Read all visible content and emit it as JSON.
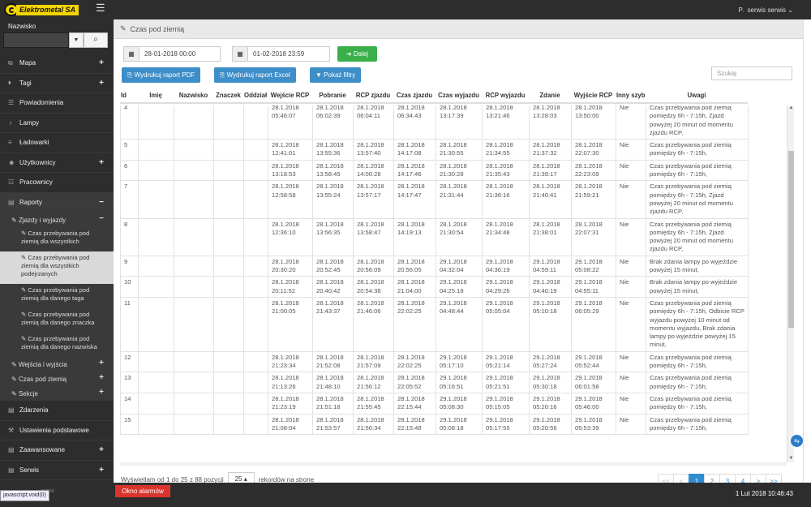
{
  "app": {
    "brand": "Elektrometal SA",
    "user_prefix": "P.",
    "user": "serwis serwis"
  },
  "sidebar": {
    "search_label": "Nazwisko",
    "menu": [
      {
        "label": "Mapa",
        "icon": "sitemap-icon",
        "plus": "+"
      },
      {
        "label": "Tagi",
        "icon": "tag-icon",
        "plus": "+"
      },
      {
        "label": "Powiadomienia",
        "icon": "users-icon",
        "plus": ""
      },
      {
        "label": "Lampy",
        "icon": "bulb-icon",
        "plus": ""
      },
      {
        "label": "Ładowarki",
        "icon": "list-icon",
        "plus": ""
      },
      {
        "label": "Użytkownicy",
        "icon": "user-icon",
        "plus": "+"
      },
      {
        "label": "Pracownicy",
        "icon": "group-icon",
        "plus": ""
      },
      {
        "label": "Raporty",
        "icon": "book-icon",
        "plus": "−"
      }
    ],
    "sub_group": {
      "label": "Zjazdy i wyjazdy",
      "sign": "−"
    },
    "sub_items": [
      "Czas przebywania pod ziemią dla wszystkich",
      "Czas przebywania pod ziemią dla wszystkich podejrzanych",
      "Czas przebywania pod ziemią dla danego taga",
      "Czas przebywania pod ziemią dla danego znaczka",
      "Czas przebywania pod ziemią dla danego nazwiska"
    ],
    "sub_groups_after": [
      {
        "label": "Wejścia i wyjścia",
        "sign": "+"
      },
      {
        "label": "Czas pod ziemią",
        "sign": "+"
      },
      {
        "label": "Sekcje",
        "sign": "+"
      }
    ],
    "menu_after": [
      {
        "label": "Zdarzenia",
        "plus": ""
      },
      {
        "label": "Ustawienia podstawowe",
        "plus": ""
      },
      {
        "label": "Zaawansowane",
        "plus": "+"
      },
      {
        "label": "Serwis",
        "plus": "+"
      }
    ]
  },
  "page": {
    "title": "Czas pod ziemią",
    "date_from": "28-01-2018 00:00",
    "date_to": "01-02-2018 23:59",
    "next_label": "Dalej",
    "btn_pdf": "Wydrukuj raport PDF",
    "btn_excel": "Wydrukuj raport Excel",
    "btn_filters": "Pokaż filtry",
    "search_placeholder": "Szukaj"
  },
  "table": {
    "columns": [
      "Id",
      "Imię",
      "Nazwisko",
      "Znaczek",
      "Oddział",
      "Wejście RCP",
      "Pobranie",
      "RCP zjazdu",
      "Czas zjazdu",
      "Czas wyjazdu",
      "RCP wyjazdu",
      "Zdanie",
      "Wyjście RCP",
      "Inny szyb",
      "Uwagi"
    ],
    "rows": [
      {
        "id": "4",
        "d": [
          "28.1.2018 05:46:07",
          "28.1.2018 06:02:39",
          "28.1.2018 06:04:11",
          "28.1.2018 06:34:43",
          "28.1.2018 13:17:39",
          "28.1.2018 13:21:46",
          "28.1.2018 13:28:03",
          "28.1.2018 13:50:00"
        ],
        "inny": "Nie",
        "uwagi": "Czas przebywania pod ziemią pomiędzy 6h - 7:15h, Zjazd powyżej 20 minut od momentu zjazdu RCP,"
      },
      {
        "id": "5",
        "d": [
          "28.1.2018 12:41:01",
          "28.1.2018 13:55:36",
          "28.1.2018 13:57:40",
          "28.1.2018 14:17:08",
          "28.1.2018 21:30:55",
          "28.1.2018 21:34:55",
          "28.1.2018 21:37:32",
          "28.1.2018 22:07:30"
        ],
        "inny": "Nie",
        "uwagi": "Czas przebywania pod ziemią pomiędzy 6h - 7:15h,"
      },
      {
        "id": "6",
        "d": [
          "28.1.2018 13:18:53",
          "28.1.2018 13:58:45",
          "28.1.2018 14:00:28",
          "28.1.2018 14:17:46",
          "28.1.2018 21:30:28",
          "28.1.2018 21:35:43",
          "28.1.2018 21:39:17",
          "28.1.2018 22:23:09"
        ],
        "inny": "Nie",
        "uwagi": "Czas przebywania pod ziemią pomiędzy 6h - 7:15h,"
      },
      {
        "id": "7",
        "d": [
          "28.1.2018 12:58:58",
          "28.1.2018 13:55:24",
          "28.1.2018 13:57:17",
          "28.1.2018 14:17:47",
          "28.1.2018 21:31:44",
          "28.1.2018 21:36:16",
          "28.1.2018 21:40:41",
          "28.1.2018 21:59:21"
        ],
        "inny": "Nie",
        "uwagi": "Czas przebywania pod ziemią pomiędzy 6h - 7:15h, Zjazd powyżej 20 minut od momentu zjazdu RCP,"
      },
      {
        "id": "8",
        "d": [
          "28.1.2018 12:36:10",
          "28.1.2018 13:56:35",
          "28.1.2018 13:58:47",
          "28.1.2018 14:19:13",
          "28.1.2018 21:30:54",
          "28.1.2018 21:34:48",
          "28.1.2018 21:38:01",
          "28.1.2018 22:07:31"
        ],
        "inny": "Nie",
        "uwagi": "Czas przebywania pod ziemią pomiędzy 6h - 7:15h, Zjazd powyżej 20 minut od momentu zjazdu RCP,"
      },
      {
        "id": "9",
        "d": [
          "28.1.2018 20:30:20",
          "28.1.2018 20:52:45",
          "28.1.2018 20:56:09",
          "28.1.2018 20:56:05",
          "29.1.2018 04:32:04",
          "29.1.2018 04:36:19",
          "29.1.2018 04:59:11",
          "29.1.2018 05:08:22"
        ],
        "inny": "Nie",
        "uwagi": "Brak zdania lampy po wyjeździe powyżej 15 minut,"
      },
      {
        "id": "10",
        "d": [
          "28.1.2018 20:11:52",
          "28.1.2018 20:40:42",
          "28.1.2018 20:54:38",
          "28.1.2018 21:04:00",
          "29.1.2018 04:25:18",
          "29.1.2018 04:29:26",
          "29.1.2018 04:40:19",
          "29.1.2018 04:55:11"
        ],
        "inny": "Nie",
        "uwagi": "Brak zdania lampy po wyjeździe powyżej 15 minut,"
      },
      {
        "id": "11",
        "d": [
          "28.1.2018 21:00:05",
          "28.1.2018 21:43:37",
          "28.1.2018 21:46:06",
          "28.1.2018 22:02:25",
          "29.1.2018 04:48:44",
          "29.1.2018 05:05:04",
          "29.1.2018 05:10:18",
          "29.1.2018 06:05:29"
        ],
        "inny": "Nie",
        "uwagi": "Czas przebywania pod ziemią pomiędzy 6h - 7:15h, Odbicie RCP wyjazdu powyżej 10 minut od momentu wyjazdu, Brak zdania lampy po wyjeździe powyżej 15 minut,"
      },
      {
        "id": "12",
        "d": [
          "28.1.2018 21:23:34",
          "28.1.2018 21:52:08",
          "28.1.2018 21:57:09",
          "28.1.2018 22:02:25",
          "29.1.2018 05:17:10",
          "29.1.2018 05:21:14",
          "29.1.2018 05:27:24",
          "29.1.2018 05:52:44"
        ],
        "inny": "Nie",
        "uwagi": "Czas przebywania pod ziemią pomiędzy 6h - 7:15h,"
      },
      {
        "id": "13",
        "d": [
          "28.1.2018 21:13:26",
          "28.1.2018 21:48:10",
          "28.1.2018 21:56:12",
          "28.1.2018 22:05:52",
          "29.1.2018 05:16:51",
          "29.1.2018 05:21:51",
          "29.1.2018 05:30:18",
          "29.1.2018 06:01:58"
        ],
        "inny": "Nie",
        "uwagi": "Czas przebywania pod ziemią pomiędzy 6h - 7:15h,"
      },
      {
        "id": "14",
        "d": [
          "28.1.2018 21:23:19",
          "28.1.2018 21:51:18",
          "28.1.2018 21:55:45",
          "28.1.2018 22:15:44",
          "29.1.2018 05:08:30",
          "29.1.2018 05:15:05",
          "29.1.2018 05:20:16",
          "29.1.2018 05:46:00"
        ],
        "inny": "Nie",
        "uwagi": "Czas przebywania pod ziemią pomiędzy 6h - 7:15h,"
      },
      {
        "id": "15",
        "d": [
          "28.1.2018 21:08:04",
          "28.1.2018 21:53:57",
          "28.1.2018 21:56:34",
          "28.1.2018 22:15:48",
          "29.1.2018 05:08:18",
          "29.1.2018 05:17:55",
          "29.1.2018 05:20:56",
          "29.1.2018 05:53:39"
        ],
        "inny": "Nie",
        "uwagi": "Czas przebywania pod ziemią pomiędzy 6h - 7:15h,"
      }
    ]
  },
  "footer": {
    "info_prefix": "Wyświetlam od 1 do 25 z 88 pozycji",
    "page_size": "25",
    "info_suffix": "rekordów na stronę",
    "pages": [
      "<<",
      "<",
      "1",
      "2",
      "3",
      "4",
      ">",
      ">>"
    ]
  },
  "bottom": {
    "alarm": "Okno alarmów",
    "datetime": "1 Lut 2018 10:46:43",
    "status_text": "javascript:void(0)",
    "faint_text": "metal"
  },
  "colors": {
    "accent_blue": "#3d8ec9",
    "green": "#3bb04a",
    "alarm_red": "#d9352c",
    "sidebar_bg": "#2d2d2d",
    "brand_yellow": "#f2d400"
  }
}
